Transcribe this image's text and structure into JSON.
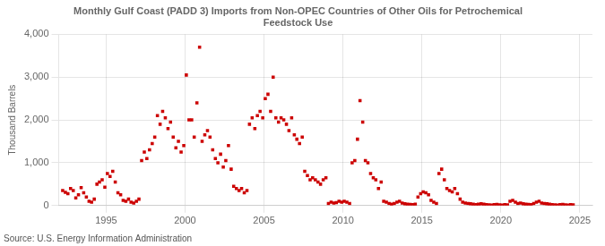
{
  "chart_data": {
    "type": "scatter",
    "title": "Monthly Gulf Coast (PADD 3) Imports from Non-OPEC Countries of Other Oils for Petrochemical\nFeedstock Use",
    "y_label": "Thousand Barrels",
    "annotations": [
      "Source: U.S. Energy Information Administration"
    ],
    "color": "#cc0000",
    "marker": "square",
    "grid": true,
    "xlim": [
      1992.0,
      2025.8
    ],
    "ylim": [
      0,
      4000
    ],
    "xticks": [
      1995,
      2000,
      2005,
      2010,
      2015,
      2020,
      2025
    ],
    "yticks": [
      0,
      {
        "value": 1000,
        "label": "1,000"
      },
      {
        "value": 2000,
        "label": "2,000"
      },
      {
        "value": 3000,
        "label": "3,000"
      },
      {
        "value": 4000,
        "label": "4,000"
      }
    ],
    "x": [
      1992.25,
      1992.42,
      1992.58,
      1992.75,
      1992.92,
      1993.08,
      1993.25,
      1993.42,
      1993.58,
      1993.75,
      1993.92,
      1994.08,
      1994.25,
      1994.42,
      1994.58,
      1994.75,
      1994.92,
      1995.08,
      1995.25,
      1995.42,
      1995.58,
      1995.75,
      1995.92,
      1996.08,
      1996.25,
      1996.42,
      1996.58,
      1996.75,
      1996.92,
      1997.08,
      1997.25,
      1997.42,
      1997.58,
      1997.75,
      1997.92,
      1998.08,
      1998.25,
      1998.42,
      1998.58,
      1998.75,
      1998.92,
      1999.08,
      1999.25,
      1999.42,
      1999.58,
      1999.75,
      1999.92,
      2000.08,
      2000.25,
      2000.42,
      2000.58,
      2000.75,
      2000.92,
      2001.08,
      2001.25,
      2001.42,
      2001.58,
      2001.75,
      2001.92,
      2002.08,
      2002.25,
      2002.42,
      2002.58,
      2002.75,
      2002.92,
      2003.08,
      2003.25,
      2003.42,
      2003.58,
      2003.75,
      2003.92,
      2004.08,
      2004.25,
      2004.42,
      2004.58,
      2004.75,
      2004.92,
      2005.08,
      2005.25,
      2005.42,
      2005.58,
      2005.75,
      2005.92,
      2006.08,
      2006.25,
      2006.42,
      2006.58,
      2006.75,
      2006.92,
      2007.08,
      2007.25,
      2007.42,
      2007.58,
      2007.75,
      2007.92,
      2008.08,
      2008.25,
      2008.42,
      2008.58,
      2008.75,
      2008.92,
      2009.08,
      2009.25,
      2009.42,
      2009.58,
      2009.75,
      2009.92,
      2010.08,
      2010.25,
      2010.42,
      2010.58,
      2010.75,
      2010.92,
      2011.08,
      2011.25,
      2011.42,
      2011.58,
      2011.75,
      2011.92,
      2012.08,
      2012.25,
      2012.42,
      2012.58,
      2012.75,
      2012.92,
      2013.08,
      2013.25,
      2013.42,
      2013.58,
      2013.75,
      2013.92,
      2014.08,
      2014.25,
      2014.42,
      2014.58,
      2014.75,
      2014.92,
      2015.08,
      2015.25,
      2015.42,
      2015.58,
      2015.75,
      2015.92,
      2016.08,
      2016.25,
      2016.42,
      2016.58,
      2016.75,
      2016.92,
      2017.08,
      2017.25,
      2017.42,
      2017.58,
      2017.75,
      2017.92,
      2018.08,
      2018.25,
      2018.42,
      2018.58,
      2018.75,
      2018.92,
      2019.08,
      2019.25,
      2019.42,
      2019.58,
      2019.75,
      2019.92,
      2020.08,
      2020.25,
      2020.42,
      2020.58,
      2020.75,
      2020.92,
      2021.08,
      2021.25,
      2021.42,
      2021.58,
      2021.75,
      2021.92,
      2022.08,
      2022.25,
      2022.42,
      2022.58,
      2022.75,
      2022.92,
      2023.08,
      2023.25,
      2023.42,
      2023.58,
      2023.75,
      2023.92,
      2024.08,
      2024.25,
      2024.42,
      2024.58
    ],
    "values": [
      350,
      310,
      280,
      400,
      350,
      180,
      250,
      420,
      300,
      200,
      100,
      80,
      150,
      500,
      550,
      600,
      430,
      750,
      680,
      800,
      550,
      300,
      250,
      120,
      100,
      150,
      80,
      60,
      100,
      150,
      1050,
      1250,
      1100,
      1300,
      1450,
      1600,
      2100,
      1900,
      2200,
      2050,
      1800,
      1950,
      1600,
      1350,
      1500,
      1250,
      1400,
      3050,
      2000,
      2000,
      1600,
      2400,
      3700,
      1500,
      1650,
      1750,
      1600,
      1300,
      1100,
      1000,
      1200,
      900,
      1050,
      1400,
      850,
      450,
      400,
      350,
      400,
      300,
      350,
      1900,
      2050,
      1800,
      2100,
      2200,
      2050,
      2500,
      2600,
      2200,
      3000,
      2050,
      1950,
      2050,
      2000,
      1900,
      1750,
      2050,
      1650,
      1550,
      1450,
      1600,
      800,
      700,
      600,
      650,
      600,
      550,
      500,
      600,
      650,
      50,
      80,
      60,
      70,
      100,
      80,
      100,
      80,
      50,
      1000,
      1050,
      1550,
      2450,
      1950,
      1050,
      1000,
      750,
      650,
      600,
      400,
      550,
      100,
      80,
      50,
      30,
      50,
      80,
      100,
      60,
      40,
      30,
      25,
      20,
      30,
      200,
      280,
      320,
      300,
      250,
      120,
      80,
      50,
      750,
      850,
      600,
      400,
      350,
      320,
      400,
      280,
      150,
      80,
      60,
      50,
      40,
      30,
      20,
      30,
      40,
      30,
      20,
      15,
      10,
      20,
      25,
      15,
      10,
      20,
      15,
      100,
      120,
      80,
      50,
      60,
      40,
      30,
      25,
      20,
      50,
      80,
      100,
      60,
      50,
      40,
      30,
      20,
      15,
      10,
      20,
      25,
      15,
      10,
      20,
      15
    ]
  }
}
